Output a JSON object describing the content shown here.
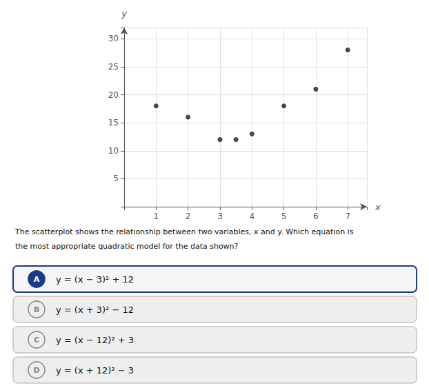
{
  "chart_data": {
    "type": "scatter",
    "x": [
      1,
      2,
      3,
      3.5,
      4,
      5,
      6,
      7
    ],
    "values": [
      18,
      16,
      12,
      12,
      13,
      18,
      21,
      28
    ],
    "color": "#1a1a1a",
    "xlabel": "x",
    "ylabel": "y",
    "xlim": [
      0,
      7.6
    ],
    "ylim": [
      0,
      32
    ],
    "xticks": [
      1,
      2,
      3,
      4,
      5,
      6,
      7
    ],
    "yticks": [
      5,
      10,
      15,
      20,
      25,
      30
    ],
    "grid": true,
    "annotations": [
      "The scatterplot shows the relationship between two variables, x and y. Which equation is",
      "the most appropriate quadratic model for the data shown?",
      {
        "label": "A",
        "text": "y = (x − 3)² + 12",
        "color": "#1a3a8c"
      },
      {
        "label": "B",
        "text": "y = (x + 3)² − 12"
      },
      {
        "label": "C",
        "text": "y = (x − 12)² + 3"
      },
      {
        "label": "D",
        "text": "y = (x + 12)² − 3"
      }
    ]
  }
}
